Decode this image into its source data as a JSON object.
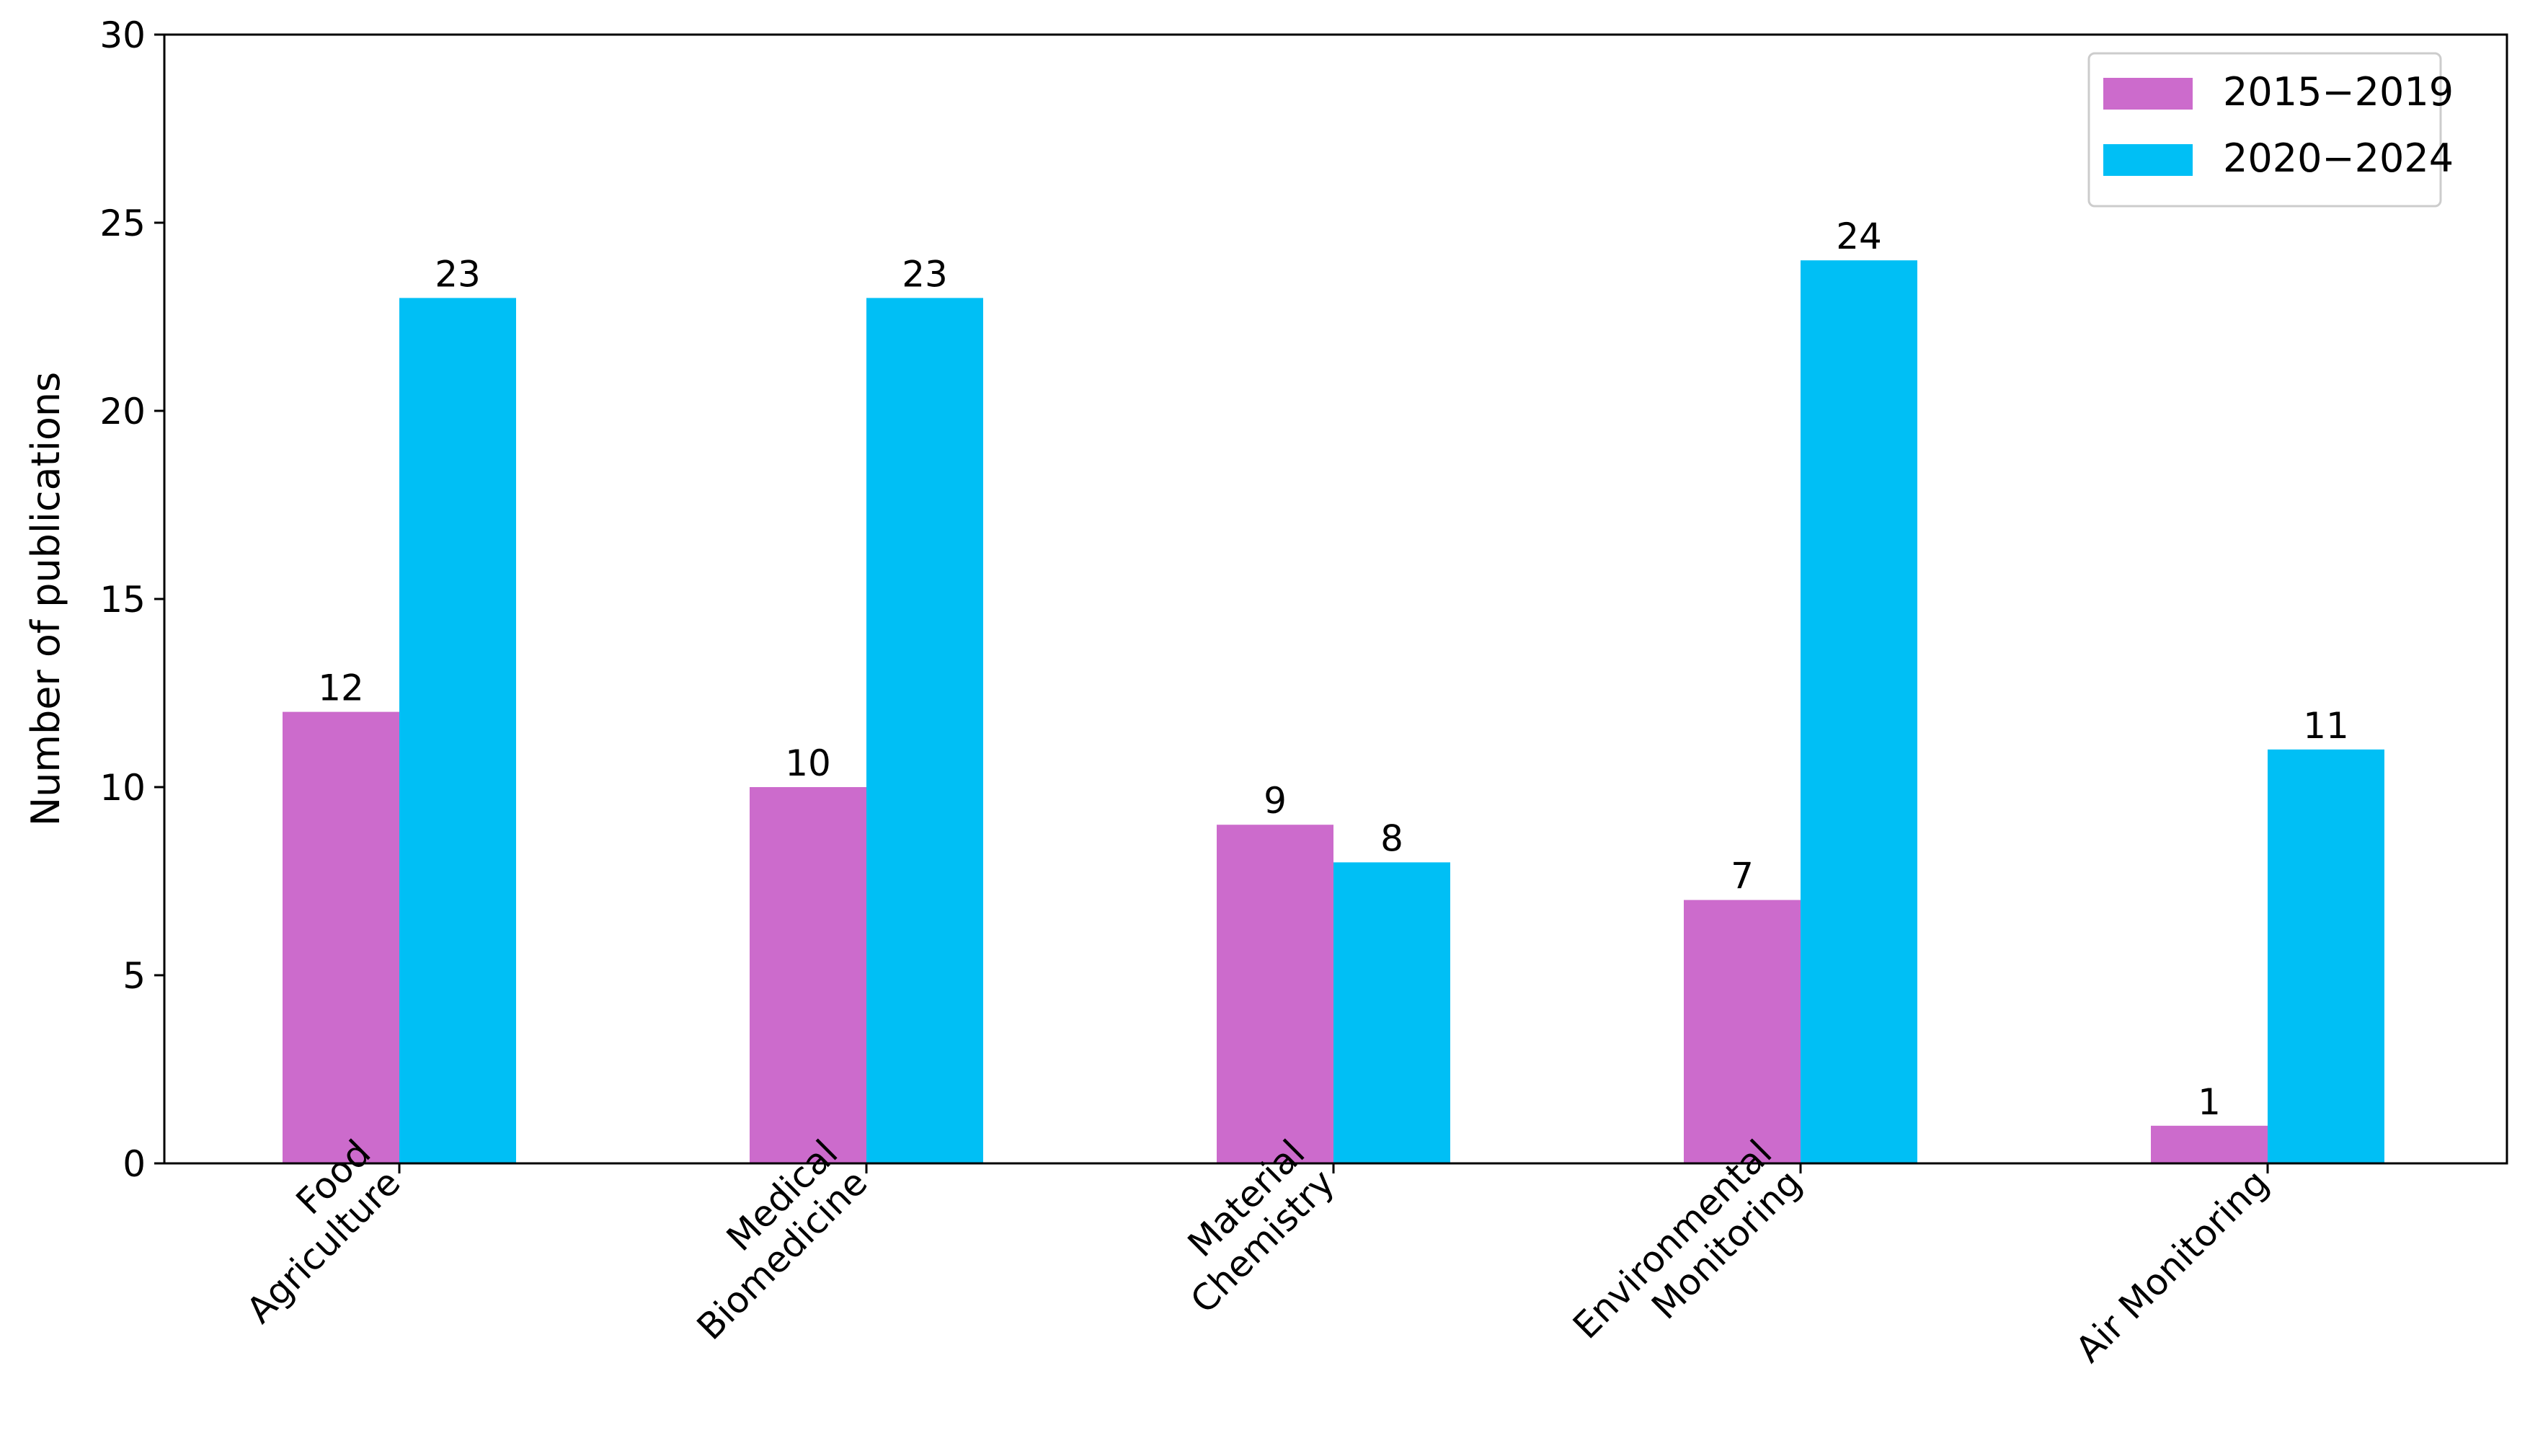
{
  "chart_data": {
    "type": "bar",
    "categories": [
      [
        "Food",
        "Agriculture"
      ],
      [
        "Medical",
        "Biomedicine"
      ],
      [
        "Material",
        "Chemistry"
      ],
      [
        "Environmental",
        "Monitoring"
      ],
      [
        "Air Monitoring"
      ]
    ],
    "series": [
      {
        "name": "2015−2019",
        "values": [
          12,
          10,
          9,
          7,
          1
        ],
        "color": "#CC6BCC"
      },
      {
        "name": "2020−2024",
        "values": [
          23,
          23,
          8,
          24,
          11
        ],
        "color": "#00BFF5"
      }
    ],
    "xlabel": "",
    "ylabel": "Number of publications",
    "ylim": [
      0,
      30
    ],
    "yticks": [
      0,
      5,
      10,
      15,
      20,
      25,
      30
    ],
    "legend_position": "top-right",
    "grid": false,
    "data_labels": true,
    "x_tick_rotation_deg": 45
  }
}
